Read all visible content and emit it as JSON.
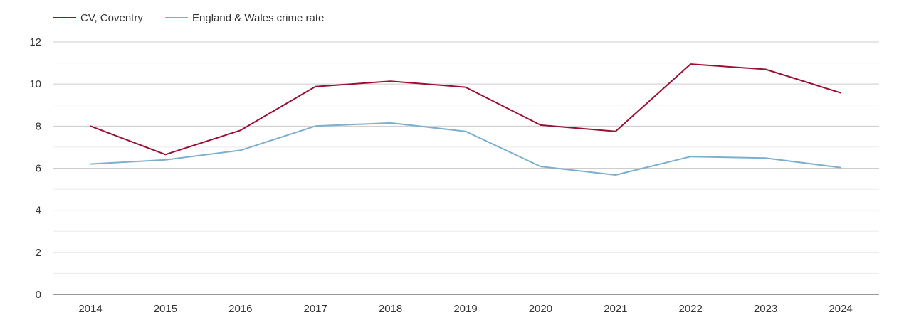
{
  "chart_data": {
    "type": "line",
    "title": "",
    "xlabel": "",
    "ylabel": "",
    "categories": [
      "2014",
      "2015",
      "2016",
      "2017",
      "2018",
      "2019",
      "2020",
      "2021",
      "2022",
      "2023",
      "2024"
    ],
    "ylim": [
      0,
      12
    ],
    "yticks": [
      0,
      2,
      4,
      6,
      8,
      10,
      12
    ],
    "grid": true,
    "legend_position": "top-left",
    "series": [
      {
        "name": "CV, Coventry",
        "color": "#9b0f33",
        "values": [
          8.0,
          6.65,
          7.8,
          9.88,
          10.13,
          9.85,
          8.05,
          7.75,
          10.95,
          10.7,
          9.58
        ]
      },
      {
        "name": "England & Wales crime rate",
        "color": "#7aafcf",
        "values": [
          6.2,
          6.4,
          6.85,
          8.0,
          8.15,
          7.75,
          6.08,
          5.68,
          6.55,
          6.48,
          6.03
        ]
      }
    ]
  }
}
